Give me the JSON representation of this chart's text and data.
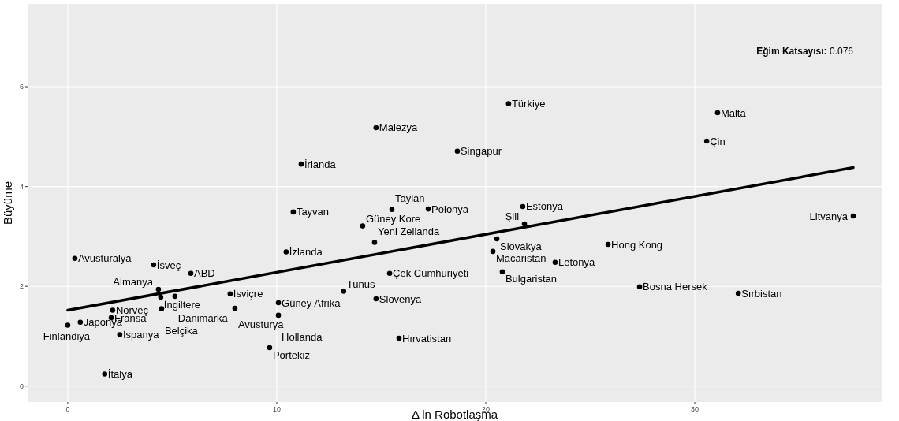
{
  "chart_data": {
    "type": "scatter",
    "xlabel": "Δ ln Robotlaşma",
    "ylabel": "Büyüme",
    "xlim": [
      -1.92,
      38.94
    ],
    "ylim": [
      -0.32,
      7.66
    ],
    "xticks": [
      0,
      10,
      20,
      30
    ],
    "yticks": [
      0,
      2,
      4,
      6
    ],
    "grid": true,
    "series": [
      {
        "type": "scatter",
        "marker": "circle",
        "color": "#000000",
        "x": [
          0.0,
          0.6,
          2.08,
          2.15,
          2.49,
          1.77,
          0.34,
          4.11,
          5.89,
          4.34,
          4.45,
          5.13,
          4.49,
          7.77,
          8.0,
          10.08,
          10.08,
          9.66,
          10.45,
          11.17,
          10.79,
          14.75,
          13.2,
          14.75,
          15.85,
          15.4,
          14.68,
          14.11,
          15.51,
          17.25,
          18.64,
          21.09,
          21.77,
          21.85,
          20.53,
          20.34,
          23.32,
          20.79,
          25.85,
          27.36,
          32.08,
          31.09,
          30.57,
          37.58
        ],
        "values": [
          1.22,
          1.28,
          1.37,
          1.52,
          1.03,
          0.24,
          2.56,
          2.43,
          2.26,
          1.94,
          1.78,
          1.8,
          1.55,
          1.85,
          1.56,
          1.67,
          1.42,
          0.77,
          2.69,
          4.45,
          3.49,
          5.18,
          1.9,
          1.75,
          0.96,
          2.26,
          2.88,
          3.21,
          3.54,
          3.55,
          4.71,
          5.66,
          3.6,
          3.25,
          2.95,
          2.7,
          2.48,
          2.29,
          2.84,
          1.99,
          1.86,
          5.48,
          4.91,
          3.41
        ]
      },
      {
        "type": "line",
        "color": "#000000",
        "x": [
          0,
          37.58
        ],
        "values": [
          1.52,
          4.38
        ]
      }
    ],
    "annotations": [
      {
        "text": "Finlandiya",
        "x": 0.0,
        "y": 1.22
      },
      {
        "text": "Japonya",
        "x": 0.6,
        "y": 1.28
      },
      {
        "text": "Fransa",
        "x": 2.08,
        "y": 1.37
      },
      {
        "text": "Norveç",
        "x": 2.15,
        "y": 1.52
      },
      {
        "text": "İspanya",
        "x": 2.49,
        "y": 1.03
      },
      {
        "text": "İtalya",
        "x": 1.77,
        "y": 0.24
      },
      {
        "text": "Avusturalya",
        "x": 0.34,
        "y": 2.56
      },
      {
        "text": "İsveç",
        "x": 4.11,
        "y": 2.43
      },
      {
        "text": "ABD",
        "x": 5.89,
        "y": 2.26
      },
      {
        "text": "Almanya",
        "x": 4.34,
        "y": 1.94
      },
      {
        "text": "İngiltere",
        "x": 4.45,
        "y": 1.78
      },
      {
        "text": "Danimarka",
        "x": 5.13,
        "y": 1.8
      },
      {
        "text": "Belçika",
        "x": 4.49,
        "y": 1.55
      },
      {
        "text": "İsviçre",
        "x": 7.77,
        "y": 1.85
      },
      {
        "text": "Avusturya",
        "x": 8.0,
        "y": 1.56
      },
      {
        "text": "Güney Afrika",
        "x": 10.08,
        "y": 1.67
      },
      {
        "text": "Hollanda",
        "x": 10.08,
        "y": 1.42
      },
      {
        "text": "Portekiz",
        "x": 9.66,
        "y": 0.77
      },
      {
        "text": "İzlanda",
        "x": 10.45,
        "y": 2.69
      },
      {
        "text": "İrlanda",
        "x": 11.17,
        "y": 4.45
      },
      {
        "text": "Tayvan",
        "x": 10.79,
        "y": 3.49
      },
      {
        "text": "Malezya",
        "x": 14.75,
        "y": 5.18
      },
      {
        "text": "Tunus",
        "x": 13.2,
        "y": 1.9
      },
      {
        "text": "Slovenya",
        "x": 14.75,
        "y": 1.75
      },
      {
        "text": "Hırvatistan",
        "x": 15.85,
        "y": 0.96
      },
      {
        "text": "Çek Cumhuriyeti",
        "x": 15.4,
        "y": 2.26
      },
      {
        "text": "Yeni Zellanda",
        "x": 14.68,
        "y": 2.88
      },
      {
        "text": "Güney Kore",
        "x": 14.11,
        "y": 3.21
      },
      {
        "text": "Taylan",
        "x": 15.51,
        "y": 3.54
      },
      {
        "text": "Polonya",
        "x": 17.25,
        "y": 3.55
      },
      {
        "text": "Singapur",
        "x": 18.64,
        "y": 4.71
      },
      {
        "text": "Türkiye",
        "x": 21.09,
        "y": 5.66
      },
      {
        "text": "Estonya",
        "x": 21.77,
        "y": 3.6
      },
      {
        "text": "Şili",
        "x": 21.85,
        "y": 3.25
      },
      {
        "text": "Slovakya",
        "x": 20.53,
        "y": 2.95
      },
      {
        "text": "Macaristan",
        "x": 20.34,
        "y": 2.7
      },
      {
        "text": "Letonya",
        "x": 23.32,
        "y": 2.48
      },
      {
        "text": "Bulgaristan",
        "x": 20.79,
        "y": 2.29
      },
      {
        "text": "Hong Kong",
        "x": 25.85,
        "y": 2.84
      },
      {
        "text": "Bosna Hersek",
        "x": 27.36,
        "y": 1.99
      },
      {
        "text": "Sırbistan",
        "x": 32.08,
        "y": 1.86
      },
      {
        "text": "Malta",
        "x": 31.09,
        "y": 5.48
      },
      {
        "text": "Çin",
        "x": 30.57,
        "y": 4.91
      },
      {
        "text": "Litvanya",
        "x": 37.58,
        "y": 3.41
      },
      "Eğim Katsayısı: 0.076"
    ]
  }
}
